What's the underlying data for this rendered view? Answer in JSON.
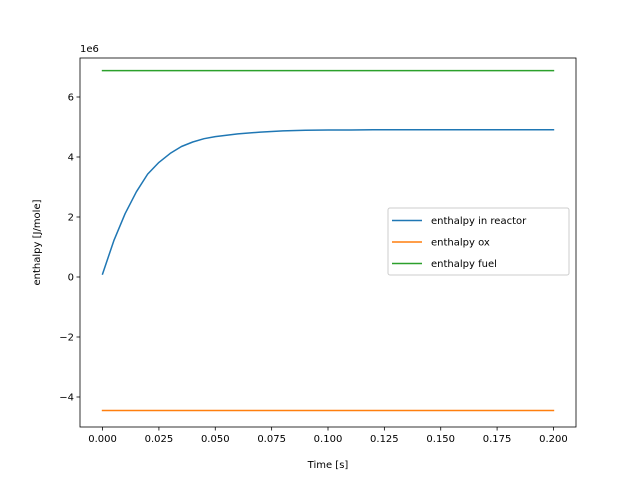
{
  "chart_data": {
    "type": "line",
    "title": "",
    "xlabel": "Time [s]",
    "ylabel": "enthalpy [J/mole]",
    "y_offset_label": "1e6",
    "y_scale_multiplier": 1000000,
    "xlim": [
      -0.01,
      0.21
    ],
    "ylim": [
      -5000000,
      7300000
    ],
    "xticks": [
      0.0,
      0.025,
      0.05,
      0.075,
      0.1,
      0.125,
      0.15,
      0.175,
      0.2
    ],
    "xtick_labels": [
      "0.000",
      "0.025",
      "0.050",
      "0.075",
      "0.100",
      "0.125",
      "0.150",
      "0.175",
      "0.200"
    ],
    "yticks": [
      -4000000,
      -2000000,
      0,
      2000000,
      4000000,
      6000000
    ],
    "ytick_labels": [
      "−4",
      "−2",
      "0",
      "2",
      "4",
      "6"
    ],
    "grid": false,
    "legend_position": "center-right",
    "series": [
      {
        "name": "enthalpy in reactor",
        "color": "#1f77b4",
        "x": [
          0.0,
          0.005,
          0.01,
          0.015,
          0.02,
          0.025,
          0.03,
          0.035,
          0.04,
          0.045,
          0.05,
          0.06,
          0.07,
          0.08,
          0.09,
          0.1,
          0.11,
          0.12,
          0.13,
          0.14,
          0.15,
          0.16,
          0.17,
          0.18,
          0.19,
          0.2
        ],
        "y": [
          100000,
          1210000,
          2110000,
          2840000,
          3430000,
          3820000,
          4120000,
          4350000,
          4500000,
          4610000,
          4680000,
          4770000,
          4830000,
          4870000,
          4890000,
          4900000,
          4900000,
          4910000,
          4910000,
          4910000,
          4910000,
          4910000,
          4910000,
          4910000,
          4910000,
          4910000
        ]
      },
      {
        "name": "enthalpy ox",
        "color": "#ff7f0e",
        "x": [
          0.0,
          0.2
        ],
        "y": [
          -4450000,
          -4450000
        ]
      },
      {
        "name": "enthalpy fuel",
        "color": "#2ca02c",
        "x": [
          0.0,
          0.2
        ],
        "y": [
          6880000,
          6880000
        ]
      }
    ]
  }
}
